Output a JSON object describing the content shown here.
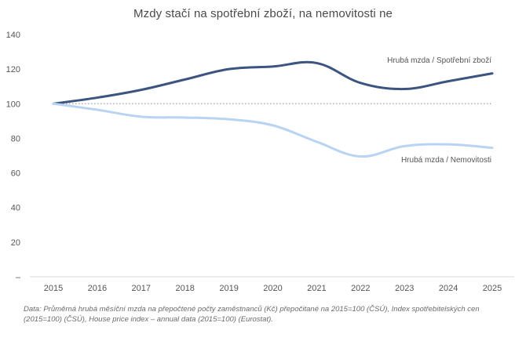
{
  "chart_data": {
    "type": "line",
    "title": "Mzdy stačí na spotřební zboží, na nemovitosti ne",
    "x": [
      2015,
      2016,
      2017,
      2018,
      2019,
      2020,
      2021,
      2022,
      2023,
      2024,
      2025
    ],
    "x_tick_labels": [
      "2015",
      "2016",
      "2017",
      "2018",
      "2019",
      "2020",
      "2021",
      "2022",
      "2023",
      "2024",
      "2025"
    ],
    "y_tick_labels": [
      "–",
      "20",
      "40",
      "60",
      "80",
      "100",
      "120",
      "140"
    ],
    "ylim": [
      0,
      140
    ],
    "reference_line": 100,
    "grid": false,
    "series": [
      {
        "name": "Hrubá mzda / Spotřební zboží",
        "color": "#3b5480",
        "values": [
          100,
          103.5,
          108,
          114,
          120,
          121.5,
          123.5,
          112,
          108.5,
          113,
          117.5
        ]
      },
      {
        "name": "Hrubá mzda / Nemovitosti",
        "color": "#b9d3f2",
        "values": [
          100,
          96.5,
          92.5,
          92,
          91,
          87.5,
          78,
          69.5,
          75.5,
          76.5,
          74.5
        ]
      }
    ],
    "source_note": "Data: Průměrná hrubá měsíční mzda na přepočtené počty zaměstnanců (Kč) přepočitané na 2015=100 (ČSÚ), Index spotřebitelských cen (2015=100) (ČSÚ), House price index – annual data (2015=100) (Eurostat)."
  }
}
